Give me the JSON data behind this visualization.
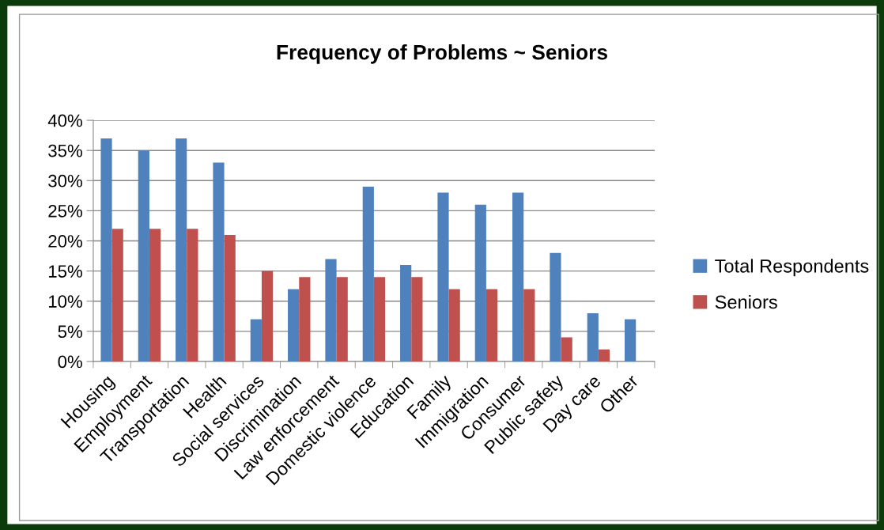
{
  "chart_data": {
    "type": "bar",
    "title": "Frequency of Problems ~ Seniors",
    "categories": [
      "Housing",
      "Employment",
      "Transportation",
      "Health",
      "Social services",
      "Discrimination",
      "Law enforcement",
      "Domestic violence",
      "Education",
      "Family",
      "Immigration",
      "Consumer",
      "Public safety",
      "Day care",
      "Other"
    ],
    "series": [
      {
        "name": "Total Respondents",
        "color": "#4f81bd",
        "values": [
          37,
          35,
          37,
          33,
          7,
          12,
          17,
          29,
          16,
          28,
          26,
          28,
          18,
          8,
          7
        ]
      },
      {
        "name": "Seniors",
        "color": "#c0504d",
        "values": [
          22,
          22,
          22,
          21,
          15,
          14,
          14,
          14,
          14,
          12,
          12,
          12,
          4,
          2,
          0
        ]
      }
    ],
    "ylim": [
      0,
      40
    ],
    "yticks": [
      {
        "value": 0,
        "label": "0%"
      },
      {
        "value": 5,
        "label": "5%"
      },
      {
        "value": 10,
        "label": "10%"
      },
      {
        "value": 15,
        "label": "15%"
      },
      {
        "value": 20,
        "label": "20%"
      },
      {
        "value": 25,
        "label": "25%"
      },
      {
        "value": 30,
        "label": "30%"
      },
      {
        "value": 35,
        "label": "35%"
      },
      {
        "value": 40,
        "label": "40%"
      }
    ],
    "grid": "y",
    "legend": "right"
  }
}
